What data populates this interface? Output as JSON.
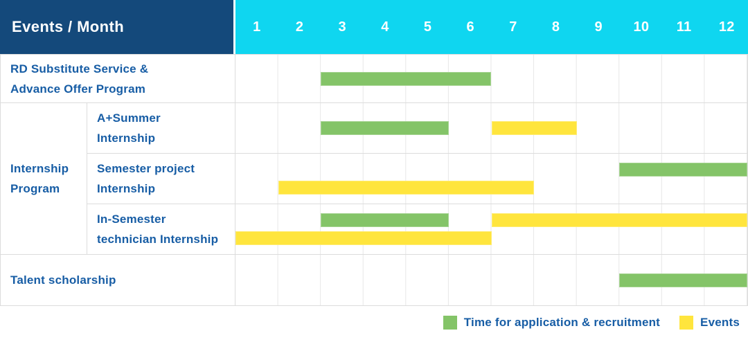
{
  "header": {
    "title": "Events / Month",
    "months": [
      "1",
      "2",
      "3",
      "4",
      "5",
      "6",
      "7",
      "8",
      "9",
      "10",
      "11",
      "12"
    ]
  },
  "row_labels": {
    "rd": [
      "RD Substitute Service &",
      "Advance Offer Program"
    ],
    "group": [
      "Internship",
      "Program"
    ],
    "a_summer": [
      "A+Summer",
      "Internship"
    ],
    "semester_project": [
      "Semester project",
      "Internship"
    ],
    "in_semester": [
      "In-Semester",
      "technician Internship"
    ],
    "talent": [
      "Talent scholarship"
    ]
  },
  "legend": {
    "items": [
      {
        "label": "Time for application & recruitment",
        "series": "application",
        "color": "#84C468"
      },
      {
        "label": "Events",
        "series": "events",
        "color": "#FFE53D"
      }
    ]
  },
  "colors": {
    "header_bg": "#14497B",
    "months_bg": "#0FD6F0",
    "application_green": "#84C468",
    "events_yellow": "#FFE53D",
    "label_blue": "#175DA5",
    "grid_line": "#E7E7E7",
    "row_border": "#DCDCDC"
  },
  "chart_data": {
    "type": "bar",
    "subtype": "gantt",
    "title": "Events / Month",
    "x_unit": "month",
    "x_ticks": [
      1,
      2,
      3,
      4,
      5,
      6,
      7,
      8,
      9,
      10,
      11,
      12
    ],
    "xlim": [
      1,
      12
    ],
    "grid": true,
    "legend_position": "bottom-right",
    "series_legend": {
      "application": "Time for application & recruitment",
      "events": "Events"
    },
    "rows": [
      {
        "group": null,
        "label": "RD Substitute Service & Advance Offer Program",
        "bars": [
          {
            "series": "application",
            "start_month": 3,
            "end_month": 6,
            "line": "center"
          }
        ]
      },
      {
        "group": "Internship Program",
        "label": "A+Summer Internship",
        "bars": [
          {
            "series": "application",
            "start_month": 3,
            "end_month": 5,
            "line": "center"
          },
          {
            "series": "events",
            "start_month": 7,
            "end_month": 8,
            "line": "center"
          }
        ]
      },
      {
        "group": "Internship Program",
        "label": "Semester project Internship",
        "bars": [
          {
            "series": "application",
            "start_month": 10,
            "end_month": 12,
            "line": "top"
          },
          {
            "series": "events",
            "start_month": 2,
            "end_month": 7,
            "line": "bottom"
          }
        ]
      },
      {
        "group": "Internship Program",
        "label": "In-Semester technician Internship",
        "bars": [
          {
            "series": "application",
            "start_month": 3,
            "end_month": 5,
            "line": "top"
          },
          {
            "series": "events",
            "start_month": 7,
            "end_month": 12,
            "line": "top"
          },
          {
            "series": "events",
            "start_month": 1,
            "end_month": 6,
            "line": "bottom"
          }
        ]
      },
      {
        "group": null,
        "label": "Talent scholarship",
        "bars": [
          {
            "series": "application",
            "start_month": 10,
            "end_month": 12,
            "line": "center"
          }
        ]
      }
    ]
  }
}
